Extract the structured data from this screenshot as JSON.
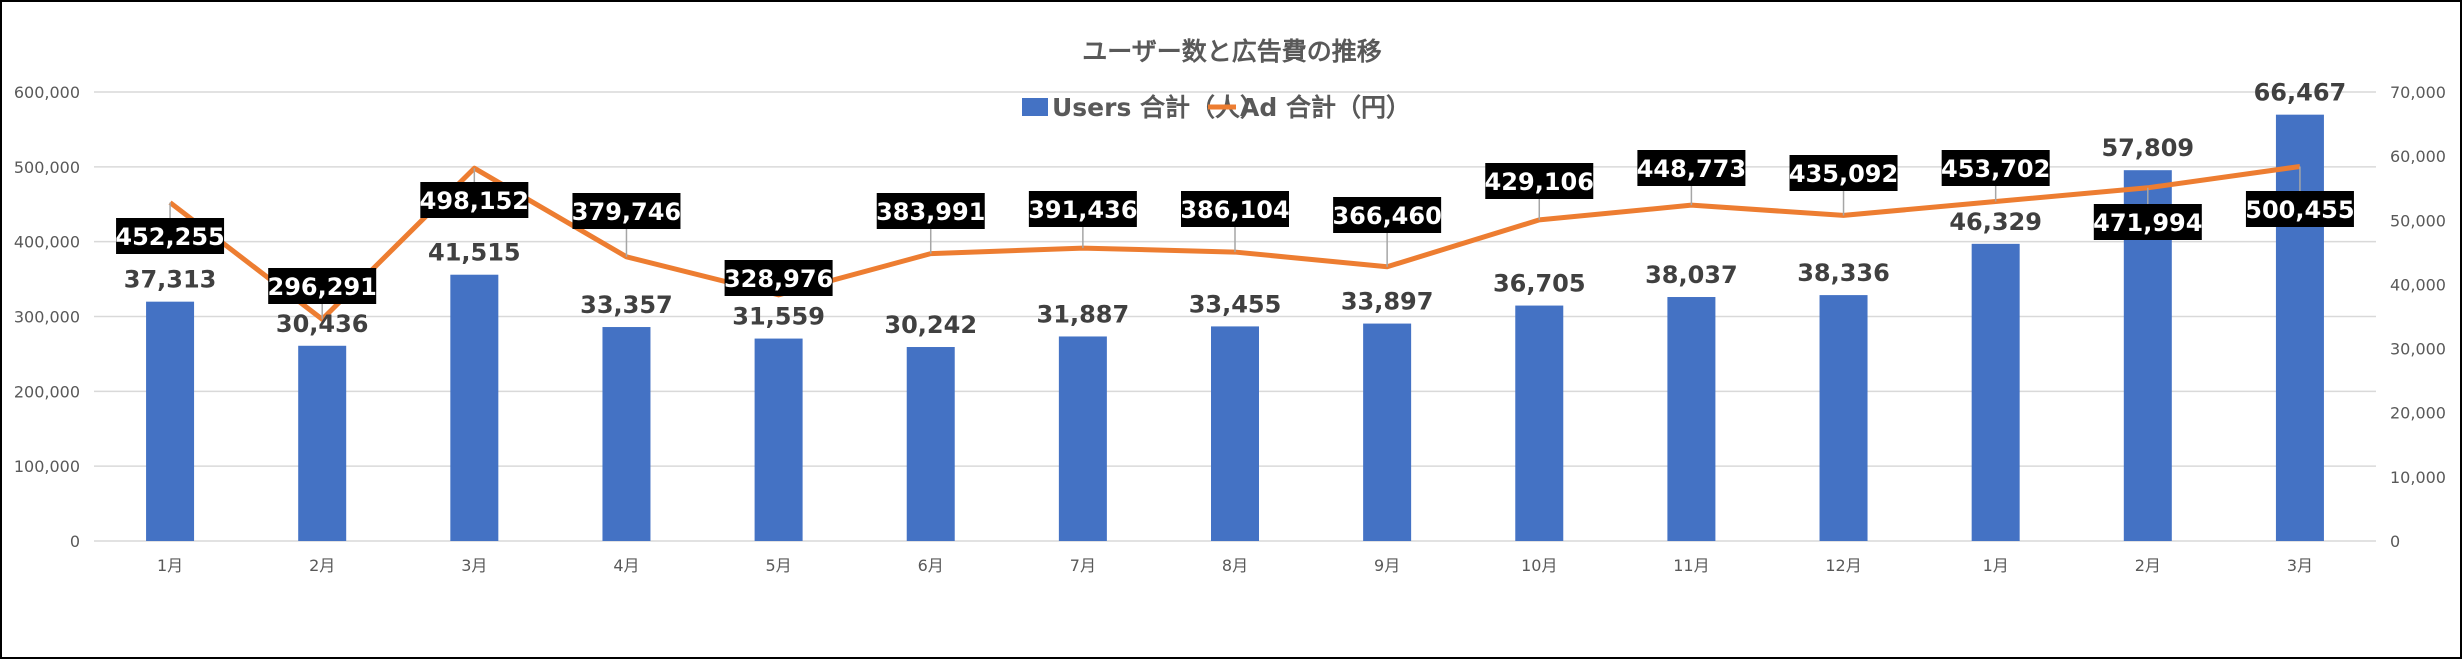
{
  "chart_data": {
    "type": "bar+line",
    "title": "ユーザー数と広告費の推移",
    "categories": [
      "1月",
      "2月",
      "3月",
      "4月",
      "5月",
      "6月",
      "7月",
      "8月",
      "9月",
      "10月",
      "11月",
      "12月",
      "1月",
      "2月",
      "3月"
    ],
    "series": [
      {
        "name": "Users 合計（人）",
        "type": "bar",
        "axis": "right",
        "color": "#4472C4",
        "values": [
          37313,
          30436,
          41515,
          33357,
          31559,
          30242,
          31887,
          33455,
          33897,
          36705,
          38037,
          38336,
          46329,
          57809,
          66467
        ],
        "labels": [
          "37,313",
          "30,436",
          "41,515",
          "33,357",
          "31,559",
          "30,242",
          "31,887",
          "33,455",
          "33,897",
          "36,705",
          "38,037",
          "38,336",
          "46,329",
          "57,809",
          "66,467"
        ]
      },
      {
        "name": "Ad 合計（円）",
        "type": "line",
        "axis": "left",
        "color": "#ED7D31",
        "values": [
          452255,
          296291,
          498152,
          379746,
          328976,
          383991,
          391436,
          386104,
          366460,
          429106,
          448773,
          435092,
          453702,
          471994,
          500455
        ],
        "labels": [
          "452,255",
          "296,291",
          "498,152",
          "379,746",
          "328,976",
          "383,991",
          "391,436",
          "386,104",
          "366,460",
          "429,106",
          "448,773",
          "435,092",
          "453,702",
          "471,994",
          "500,455"
        ]
      }
    ],
    "left_axis": {
      "ylim": [
        0,
        600000
      ],
      "ticks": [
        "0",
        "100,000",
        "200,000",
        "300,000",
        "400,000",
        "500,000",
        "600,000"
      ]
    },
    "right_axis": {
      "ylim": [
        0,
        70000
      ],
      "ticks": [
        "0",
        "10,000",
        "20,000",
        "30,000",
        "40,000",
        "50,000",
        "60,000",
        "70,000"
      ]
    },
    "legend": "top-center",
    "grid": true
  }
}
